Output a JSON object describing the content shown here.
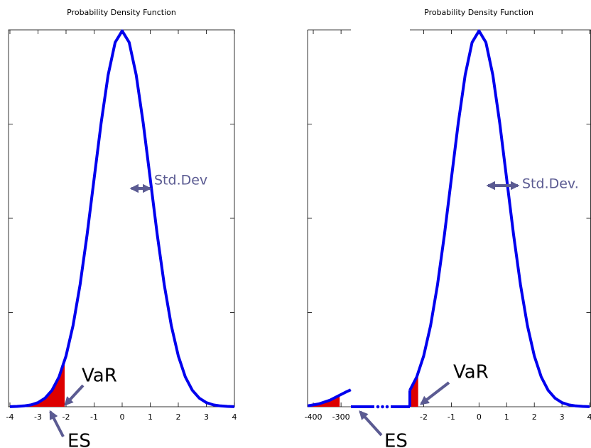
{
  "chart_data": [
    {
      "type": "line",
      "title": "Probability Density Function",
      "x": [
        -4,
        -3.75,
        -3.5,
        -3.25,
        -3,
        -2.75,
        -2.5,
        -2.25,
        -2,
        -1.75,
        -1.5,
        -1.25,
        -1,
        -0.75,
        -0.5,
        -0.25,
        0,
        0.25,
        0.5,
        0.75,
        1,
        1.25,
        1.5,
        1.75,
        2,
        2.25,
        2.5,
        2.75,
        3,
        3.25,
        3.5,
        3.75,
        4
      ],
      "values": [
        0.0001,
        0.0004,
        0.0009,
        0.002,
        0.0044,
        0.0091,
        0.0175,
        0.0317,
        0.054,
        0.0863,
        0.1295,
        0.1826,
        0.242,
        0.3011,
        0.3521,
        0.3867,
        0.3989,
        0.3867,
        0.3521,
        0.3011,
        0.242,
        0.1826,
        0.1295,
        0.0863,
        0.054,
        0.0317,
        0.0175,
        0.0091,
        0.0044,
        0.002,
        0.0009,
        0.0004,
        0.0001
      ],
      "xlim": [
        -4.05,
        4
      ],
      "xticks": [
        -4,
        -3,
        -2,
        -1,
        0,
        1,
        2,
        3,
        4
      ],
      "ylim": [
        0,
        0.4
      ],
      "yticks": [
        0.1,
        0.2,
        0.3
      ],
      "color": "#0000ee",
      "shade_color": "#dd0000",
      "shade_to": -2.05,
      "annotations": {
        "std_dev": "Std.Dev",
        "var": "VaR",
        "es": "ES"
      }
    },
    {
      "type": "line",
      "title": "Probability Density Function",
      "ylim": [
        0,
        0.4
      ],
      "yticks": [
        0.1,
        0.2,
        0.3
      ],
      "color": "#0000ee",
      "shade_color": "#dd0000",
      "segments": [
        {
          "xlim": [
            -420.5,
            -264.5
          ],
          "xticks": [
            -400,
            -300
          ],
          "x": [
            -420,
            -400,
            -380,
            -360,
            -340,
            -320,
            -300,
            -280,
            -265
          ],
          "values": [
            0.001,
            0.002,
            0.003,
            0.005,
            0.007,
            0.01,
            0.013,
            0.016,
            0.018
          ],
          "shade_to": -305
        },
        {
          "xlim": [
            -2.5,
            4.05
          ],
          "xticks": [
            -2,
            -1,
            0,
            1,
            2,
            3,
            4
          ],
          "x": [
            -2.5,
            -2.25,
            -2,
            -1.75,
            -1.5,
            -1.25,
            -1,
            -0.75,
            -0.5,
            -0.25,
            0,
            0.25,
            0.5,
            0.75,
            1,
            1.25,
            1.5,
            1.75,
            2,
            2.25,
            2.5,
            2.75,
            3,
            3.25,
            3.5,
            3.75,
            4
          ],
          "values": [
            0.0175,
            0.0317,
            0.054,
            0.0863,
            0.1295,
            0.1826,
            0.242,
            0.3011,
            0.3521,
            0.3867,
            0.3989,
            0.3867,
            0.3521,
            0.3011,
            0.242,
            0.1826,
            0.1295,
            0.0863,
            0.054,
            0.0317,
            0.0175,
            0.0091,
            0.0044,
            0.002,
            0.0009,
            0.0004,
            0.0001
          ],
          "shade_to": -2.2
        }
      ],
      "annotations": {
        "std_dev": "Std.Dev.",
        "var": "VaR",
        "es": "ES"
      }
    }
  ]
}
